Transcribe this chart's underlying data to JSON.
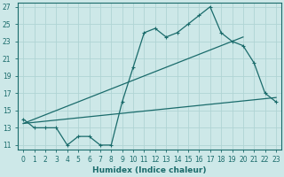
{
  "title": "",
  "xlabel": "Humidex (Indice chaleur)",
  "xlim": [
    -0.5,
    23.5
  ],
  "ylim": [
    10.5,
    27.5
  ],
  "xticks": [
    0,
    1,
    2,
    3,
    4,
    5,
    6,
    7,
    8,
    9,
    10,
    11,
    12,
    13,
    14,
    15,
    16,
    17,
    18,
    19,
    20,
    21,
    22,
    23
  ],
  "yticks": [
    11,
    13,
    15,
    17,
    19,
    21,
    23,
    25,
    27
  ],
  "bg_color": "#cde8e8",
  "grid_color": "#b0d4d4",
  "line_color": "#1a6b6b",
  "line1_x": [
    0,
    1,
    2,
    3,
    4,
    5,
    6,
    7,
    8,
    9,
    10,
    11,
    12,
    13,
    14,
    15,
    16,
    17,
    18,
    19,
    20,
    21,
    22,
    23
  ],
  "line1_y": [
    14,
    13,
    13,
    13,
    11,
    12,
    12,
    11,
    11,
    16,
    20,
    24,
    24.5,
    23.5,
    24,
    25,
    26,
    27,
    24,
    23,
    22.5,
    20.5,
    17,
    16
  ],
  "line2_x": [
    0,
    20
  ],
  "line2_y": [
    13.5,
    23.5
  ],
  "line3_x": [
    0,
    23
  ],
  "line3_y": [
    13.5,
    16.5
  ]
}
